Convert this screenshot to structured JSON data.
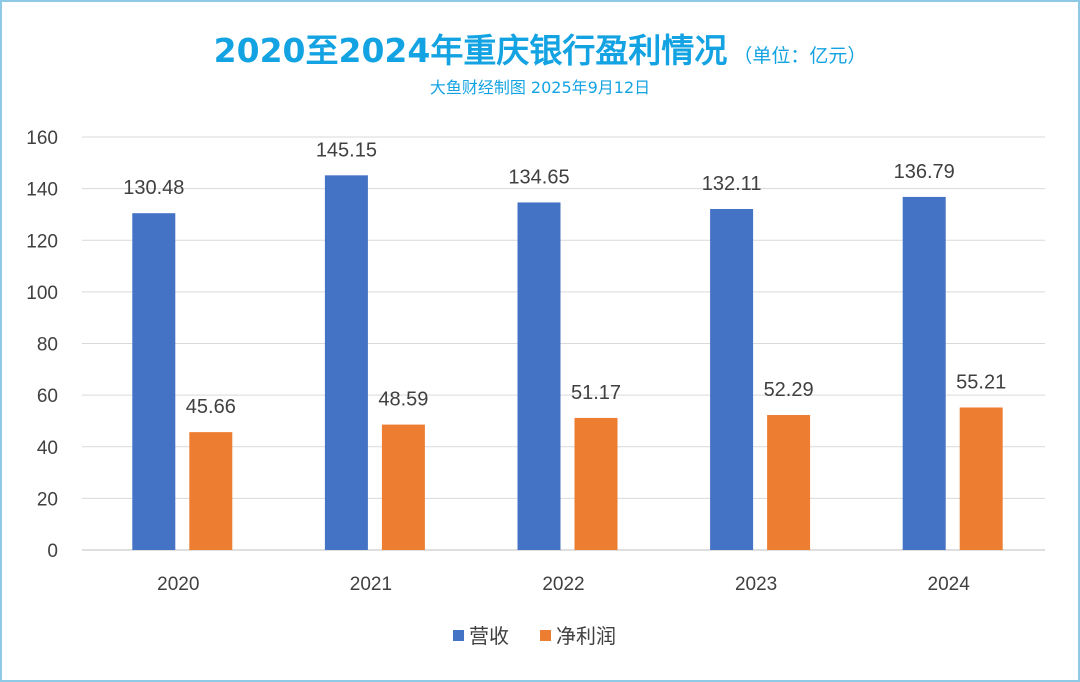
{
  "chart_data": {
    "type": "bar",
    "title": "2020至2024年重庆银行盈利情况",
    "title_unit": "（单位：亿元）",
    "subtitle": "大鱼财经制图 2025年9月12日",
    "categories": [
      "2020",
      "2021",
      "2022",
      "2023",
      "2024"
    ],
    "series": [
      {
        "name": "营收",
        "color": "#4472c4",
        "values": [
          130.48,
          145.15,
          134.65,
          132.11,
          136.79
        ]
      },
      {
        "name": "净利润",
        "color": "#ed7d31",
        "values": [
          45.66,
          48.59,
          51.17,
          52.29,
          55.21
        ]
      }
    ],
    "ylim": [
      0,
      160
    ],
    "yticks": [
      0,
      20,
      40,
      60,
      80,
      100,
      120,
      140,
      160
    ],
    "grid": true,
    "legend": "bottom-center",
    "xlabel": "",
    "ylabel": ""
  }
}
